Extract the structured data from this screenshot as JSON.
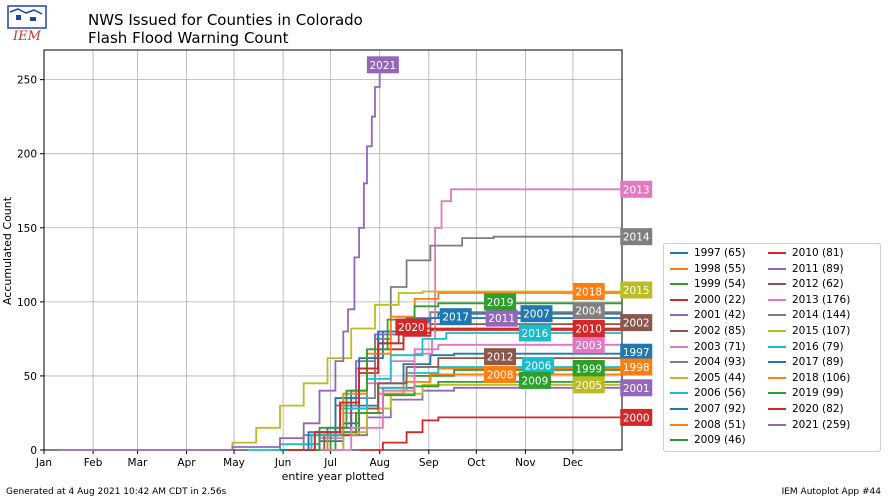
{
  "header": {
    "title_line1": "NWS Issued for Counties in Colorado",
    "title_line2": " Flash Flood Warning Count",
    "logo_text": "IEM"
  },
  "footer": {
    "left": "Generated at 4 Aug 2021 10:42 AM CDT in 2.56s",
    "right": "IEM Autoplot App #44"
  },
  "chart_data": {
    "type": "line",
    "title": "NWS Issued for Counties in Colorado Flash Flood Warning Count",
    "xlabel": "entire year plotted",
    "ylabel": "Accumulated Count",
    "ylim": [
      0,
      270
    ],
    "xlim_day_of_year": [
      1,
      366
    ],
    "month_ticks": [
      {
        "label": "Jan",
        "day": 1
      },
      {
        "label": "Feb",
        "day": 32
      },
      {
        "label": "Mar",
        "day": 60
      },
      {
        "label": "Apr",
        "day": 91
      },
      {
        "label": "May",
        "day": 121
      },
      {
        "label": "Jun",
        "day": 152
      },
      {
        "label": "Jul",
        "day": 182
      },
      {
        "label": "Aug",
        "day": 213
      },
      {
        "label": "Sep",
        "day": 244
      },
      {
        "label": "Oct",
        "day": 274
      },
      {
        "label": "Nov",
        "day": 305
      },
      {
        "label": "Dec",
        "day": 335
      }
    ],
    "y_ticks": [
      0,
      50,
      100,
      150,
      200,
      250
    ],
    "grid": true,
    "legend_position": "right",
    "series": [
      {
        "name": "1997",
        "total": 65,
        "color": "#1f77b4",
        "points": [
          [
            160,
            0
          ],
          [
            175,
            6
          ],
          [
            190,
            18
          ],
          [
            200,
            30
          ],
          [
            212,
            45
          ],
          [
            228,
            58
          ],
          [
            245,
            64
          ],
          [
            260,
            65
          ],
          [
            366,
            65
          ]
        ],
        "label_day": 375,
        "label_value": 66
      },
      {
        "name": "1998",
        "total": 55,
        "color": "#ff7f0e",
        "points": [
          [
            165,
            0
          ],
          [
            185,
            10
          ],
          [
            200,
            25
          ],
          [
            215,
            40
          ],
          [
            230,
            50
          ],
          [
            250,
            55
          ],
          [
            366,
            55
          ]
        ],
        "label_day": 375,
        "label_value": 56
      },
      {
        "name": "1999",
        "total": 54,
        "color": "#2ca02c",
        "points": [
          [
            168,
            0
          ],
          [
            185,
            12
          ],
          [
            200,
            28
          ],
          [
            215,
            42
          ],
          [
            235,
            50
          ],
          [
            260,
            54
          ],
          [
            366,
            54
          ]
        ],
        "label_day": 345,
        "label_value": 55
      },
      {
        "name": "2000",
        "total": 22,
        "color": "#d62728",
        "points": [
          [
            200,
            0
          ],
          [
            215,
            5
          ],
          [
            230,
            12
          ],
          [
            240,
            20
          ],
          [
            250,
            22
          ],
          [
            366,
            22
          ]
        ],
        "label_day": 375,
        "label_value": 22
      },
      {
        "name": "2001",
        "total": 42,
        "color": "#9467bd",
        "points": [
          [
            175,
            0
          ],
          [
            190,
            10
          ],
          [
            205,
            22
          ],
          [
            220,
            34
          ],
          [
            240,
            40
          ],
          [
            260,
            42
          ],
          [
            366,
            42
          ]
        ],
        "label_day": 375,
        "label_value": 42
      },
      {
        "name": "2002",
        "total": 85,
        "color": "#8c564b",
        "points": [
          [
            150,
            0
          ],
          [
            170,
            10
          ],
          [
            185,
            30
          ],
          [
            200,
            55
          ],
          [
            212,
            72
          ],
          [
            225,
            82
          ],
          [
            245,
            85
          ],
          [
            366,
            85
          ]
        ],
        "label_day": 375,
        "label_value": 86
      },
      {
        "name": "2003",
        "total": 71,
        "color": "#e377c2",
        "points": [
          [
            155,
            0
          ],
          [
            175,
            8
          ],
          [
            190,
            25
          ],
          [
            205,
            45
          ],
          [
            220,
            60
          ],
          [
            235,
            68
          ],
          [
            250,
            71
          ],
          [
            366,
            71
          ]
        ],
        "label_day": 345,
        "label_value": 71
      },
      {
        "name": "2004",
        "total": 93,
        "color": "#7f7f7f",
        "points": [
          [
            145,
            0
          ],
          [
            165,
            10
          ],
          [
            185,
            30
          ],
          [
            198,
            55
          ],
          [
            210,
            78
          ],
          [
            225,
            88
          ],
          [
            245,
            93
          ],
          [
            366,
            93
          ]
        ],
        "label_day": 345,
        "label_value": 94
      },
      {
        "name": "2005",
        "total": 44,
        "color": "#bcbd22",
        "points": [
          [
            170,
            0
          ],
          [
            190,
            12
          ],
          [
            205,
            28
          ],
          [
            220,
            38
          ],
          [
            240,
            44
          ],
          [
            366,
            44
          ]
        ],
        "label_day": 345,
        "label_value": 44
      },
      {
        "name": "2006",
        "total": 56,
        "color": "#17becf",
        "points": [
          [
            130,
            0
          ],
          [
            150,
            4
          ],
          [
            175,
            12
          ],
          [
            195,
            28
          ],
          [
            212,
            42
          ],
          [
            230,
            52
          ],
          [
            250,
            56
          ],
          [
            366,
            56
          ]
        ],
        "label_day": 313,
        "label_value": 57
      },
      {
        "name": "2007",
        "total": 92,
        "color": "#1f77b4",
        "points": [
          [
            165,
            0
          ],
          [
            180,
            15
          ],
          [
            195,
            40
          ],
          [
            205,
            62
          ],
          [
            215,
            80
          ],
          [
            230,
            89
          ],
          [
            250,
            92
          ],
          [
            366,
            92
          ]
        ],
        "label_day": 312,
        "label_value": 92
      },
      {
        "name": "2008",
        "total": 51,
        "color": "#ff7f0e",
        "points": [
          [
            160,
            0
          ],
          [
            180,
            10
          ],
          [
            198,
            25
          ],
          [
            212,
            38
          ],
          [
            228,
            46
          ],
          [
            245,
            51
          ],
          [
            366,
            51
          ]
        ],
        "label_day": 289,
        "label_value": 51
      },
      {
        "name": "2009",
        "total": 46,
        "color": "#2ca02c",
        "points": [
          [
            165,
            0
          ],
          [
            182,
            12
          ],
          [
            198,
            25
          ],
          [
            215,
            37
          ],
          [
            235,
            43
          ],
          [
            250,
            46
          ],
          [
            366,
            46
          ]
        ],
        "label_day": 311,
        "label_value": 47
      },
      {
        "name": "2010",
        "total": 81,
        "color": "#d62728",
        "points": [
          [
            155,
            0
          ],
          [
            172,
            12
          ],
          [
            188,
            32
          ],
          [
            200,
            52
          ],
          [
            212,
            68
          ],
          [
            228,
            77
          ],
          [
            245,
            81
          ],
          [
            366,
            81
          ]
        ],
        "label_day": 345,
        "label_value": 82
      },
      {
        "name": "2011",
        "total": 89,
        "color": "#9467bd",
        "points": [
          [
            150,
            0
          ],
          [
            168,
            10
          ],
          [
            185,
            35
          ],
          [
            198,
            60
          ],
          [
            210,
            78
          ],
          [
            225,
            86
          ],
          [
            245,
            89
          ],
          [
            366,
            89
          ]
        ],
        "label_day": 290,
        "label_value": 89
      },
      {
        "name": "2012",
        "total": 62,
        "color": "#8c564b",
        "points": [
          [
            160,
            0
          ],
          [
            178,
            10
          ],
          [
            195,
            28
          ],
          [
            212,
            45
          ],
          [
            230,
            56
          ],
          [
            250,
            62
          ],
          [
            366,
            62
          ]
        ],
        "label_day": 289,
        "label_value": 63
      },
      {
        "name": "2013",
        "total": 176,
        "color": "#e377c2",
        "points": [
          [
            175,
            0
          ],
          [
            195,
            15
          ],
          [
            215,
            40
          ],
          [
            235,
            65
          ],
          [
            246,
            75
          ],
          [
            248,
            150
          ],
          [
            252,
            168
          ],
          [
            258,
            176
          ],
          [
            366,
            176
          ]
        ],
        "label_day": 375,
        "label_value": 176
      },
      {
        "name": "2014",
        "total": 144,
        "color": "#7f7f7f",
        "points": [
          [
            160,
            0
          ],
          [
            175,
            10
          ],
          [
            190,
            35
          ],
          [
            210,
            75
          ],
          [
            220,
            110
          ],
          [
            230,
            128
          ],
          [
            245,
            138
          ],
          [
            265,
            143
          ],
          [
            285,
            144
          ],
          [
            366,
            144
          ]
        ],
        "label_day": 375,
        "label_value": 144
      },
      {
        "name": "2015",
        "total": 107,
        "color": "#bcbd22",
        "points": [
          [
            100,
            0
          ],
          [
            120,
            5
          ],
          [
            135,
            15
          ],
          [
            150,
            30
          ],
          [
            165,
            45
          ],
          [
            180,
            62
          ],
          [
            195,
            82
          ],
          [
            210,
            98
          ],
          [
            225,
            106
          ],
          [
            240,
            107
          ],
          [
            366,
            107
          ]
        ],
        "label_day": 375,
        "label_value": 108
      },
      {
        "name": "2016",
        "total": 79,
        "color": "#17becf",
        "points": [
          [
            150,
            0
          ],
          [
            170,
            10
          ],
          [
            188,
            28
          ],
          [
            205,
            48
          ],
          [
            220,
            64
          ],
          [
            240,
            75
          ],
          [
            255,
            79
          ],
          [
            366,
            79
          ]
        ],
        "label_day": 311,
        "label_value": 79
      },
      {
        "name": "2017",
        "total": 89,
        "color": "#1f77b4",
        "points": [
          [
            150,
            0
          ],
          [
            168,
            12
          ],
          [
            185,
            35
          ],
          [
            200,
            62
          ],
          [
            212,
            80
          ],
          [
            225,
            87
          ],
          [
            245,
            89
          ],
          [
            366,
            89
          ]
        ],
        "label_day": 261,
        "label_value": 90
      },
      {
        "name": "2018",
        "total": 106,
        "color": "#ff7f0e",
        "points": [
          [
            155,
            0
          ],
          [
            172,
            12
          ],
          [
            190,
            38
          ],
          [
            205,
            65
          ],
          [
            220,
            90
          ],
          [
            235,
            102
          ],
          [
            250,
            106
          ],
          [
            366,
            106
          ]
        ],
        "label_day": 345,
        "label_value": 107
      },
      {
        "name": "2019",
        "total": 99,
        "color": "#2ca02c",
        "points": [
          [
            158,
            0
          ],
          [
            175,
            15
          ],
          [
            192,
            40
          ],
          [
            205,
            68
          ],
          [
            218,
            88
          ],
          [
            235,
            97
          ],
          [
            250,
            99
          ],
          [
            366,
            99
          ]
        ],
        "label_day": 289,
        "label_value": 100
      },
      {
        "name": "2020",
        "total": 82,
        "color": "#d62728",
        "points": [
          [
            155,
            0
          ],
          [
            172,
            12
          ],
          [
            188,
            32
          ],
          [
            200,
            55
          ],
          [
            212,
            72
          ],
          [
            228,
            79
          ],
          [
            245,
            82
          ],
          [
            366,
            82
          ]
        ],
        "label_day": 233,
        "label_value": 83
      },
      {
        "name": "2021",
        "total": 259,
        "color": "#9467bd",
        "points": [
          [
            10,
            0
          ],
          [
            40,
            0
          ],
          [
            120,
            2
          ],
          [
            150,
            8
          ],
          [
            165,
            18
          ],
          [
            175,
            40
          ],
          [
            185,
            60
          ],
          [
            190,
            80
          ],
          [
            193,
            95
          ],
          [
            197,
            130
          ],
          [
            200,
            150
          ],
          [
            203,
            180
          ],
          [
            205,
            205
          ],
          [
            208,
            225
          ],
          [
            210,
            245
          ],
          [
            213,
            255
          ],
          [
            215,
            259
          ]
        ],
        "label_day": 215,
        "label_value": 260
      }
    ]
  },
  "legend": {
    "col1": [
      "1997 (65)",
      "1998 (55)",
      "1999 (54)",
      "2000 (22)",
      "2001 (42)",
      "2002 (85)",
      "2003 (71)",
      "2004 (93)",
      "2005 (44)",
      "2006 (56)",
      "2007 (92)",
      "2008 (51)",
      "2009 (46)"
    ],
    "col2": [
      "2010 (81)",
      "2011 (89)",
      "2012 (62)",
      "2013 (176)",
      "2014 (144)",
      "2015 (107)",
      "2016 (79)",
      "2017 (89)",
      "2018 (106)",
      "2019 (99)",
      "2020 (82)",
      "2021 (259)"
    ]
  }
}
